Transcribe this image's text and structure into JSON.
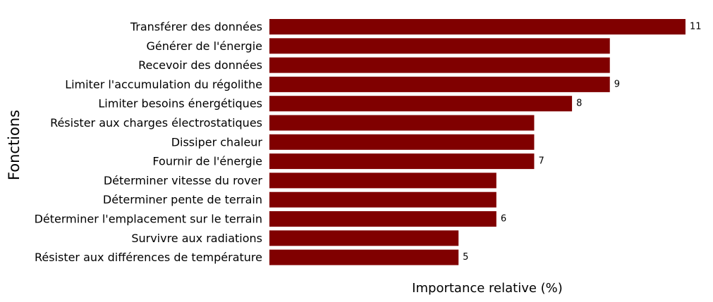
{
  "chart_data": {
    "type": "bar",
    "orientation": "horizontal",
    "xlabel": "Importance relative (%)",
    "ylabel": "Fonctions",
    "bar_color": "#800000",
    "grid": false,
    "xaxis_ticks_visible": false,
    "categories": [
      "Transférer des données",
      "Générer de l'énergie",
      "Recevoir des données",
      "Limiter l'accumulation du régolithe",
      "Limiter besoins énergétiques",
      "Résister aux charges électrostatiques",
      "Dissiper chaleur",
      "Fournir de l'énergie",
      "Déterminer vitesse du rover",
      "Déterminer pente de terrain",
      "Déterminer l'emplacement sur le terrain",
      "Survivre aux radiations",
      "Résister aux différences de température"
    ],
    "values": [
      11,
      9,
      9,
      9,
      8,
      7,
      7,
      7,
      6,
      6,
      6,
      5,
      5
    ],
    "data_labels": [
      "11",
      "",
      "",
      "9",
      "8",
      "",
      "",
      "7",
      "",
      "",
      "6",
      "",
      "5"
    ],
    "xlim": [
      0,
      11
    ]
  }
}
